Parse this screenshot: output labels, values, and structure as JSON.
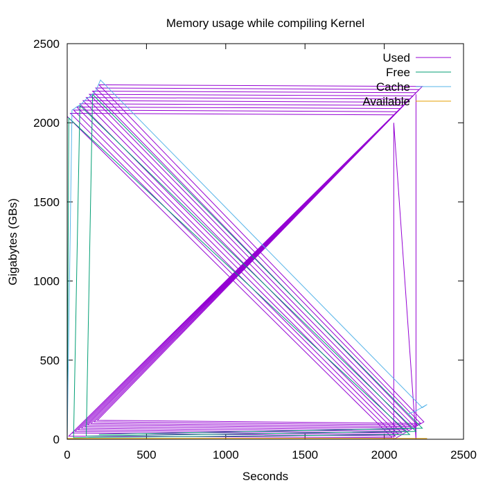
{
  "chart_data": {
    "type": "line",
    "title": "Memory usage while compiling Kernel",
    "xlabel": "Seconds",
    "ylabel": "Gigabytes (GBs)",
    "xlim": [
      0,
      2500
    ],
    "ylim": [
      0,
      2500
    ],
    "xticks": [
      0,
      500,
      1000,
      1500,
      2000,
      2500
    ],
    "yticks": [
      0,
      500,
      1000,
      1500,
      2000,
      2500
    ],
    "grid": false,
    "legend_position": "top-right",
    "series": [
      {
        "name": "Used",
        "color": "#9400d3",
        "x": [
          0,
          2050,
          10,
          2060,
          20,
          2070,
          30,
          2080,
          40,
          2090,
          50,
          2100,
          60,
          2110,
          70,
          2120,
          80,
          2130,
          90,
          2140,
          100,
          2150,
          110,
          2160,
          120,
          2170,
          130,
          2180,
          140,
          2190,
          150,
          2200,
          160,
          2210,
          170,
          2220,
          180,
          2230,
          190,
          2240,
          200,
          2250,
          2060,
          2060,
          2200,
          2200
        ],
        "y": [
          2040,
          10,
          20,
          2050,
          2060,
          20,
          40,
          2070,
          2080,
          30,
          50,
          2090,
          2100,
          40,
          60,
          2110,
          2120,
          50,
          70,
          2130,
          2140,
          60,
          80,
          2150,
          2160,
          70,
          90,
          2170,
          2180,
          80,
          100,
          2190,
          2200,
          90,
          110,
          2210,
          2220,
          100,
          120,
          2230,
          2240,
          110,
          0,
          2000,
          0,
          2180
        ]
      },
      {
        "name": "Free",
        "color": "#009e73",
        "x": [
          0,
          10,
          2160,
          40,
          80,
          2200,
          120,
          160,
          2240,
          200
        ],
        "y": [
          0,
          2030,
          30,
          10,
          2110,
          50,
          20,
          2180,
          70,
          30
        ]
      },
      {
        "name": "Cache",
        "color": "#56b4e9",
        "x": [
          0,
          30,
          60,
          90,
          120,
          150,
          180,
          210,
          2240,
          2270,
          2200,
          2150
        ],
        "y": [
          0,
          2080,
          2100,
          2120,
          2150,
          2170,
          2200,
          2270,
          200,
          220,
          180,
          160
        ]
      },
      {
        "name": "Available",
        "color": "#e69f00",
        "x": [
          0,
          500,
          1000,
          1500,
          2000,
          2270
        ],
        "y": [
          5,
          5,
          6,
          6,
          5,
          5
        ]
      }
    ]
  }
}
